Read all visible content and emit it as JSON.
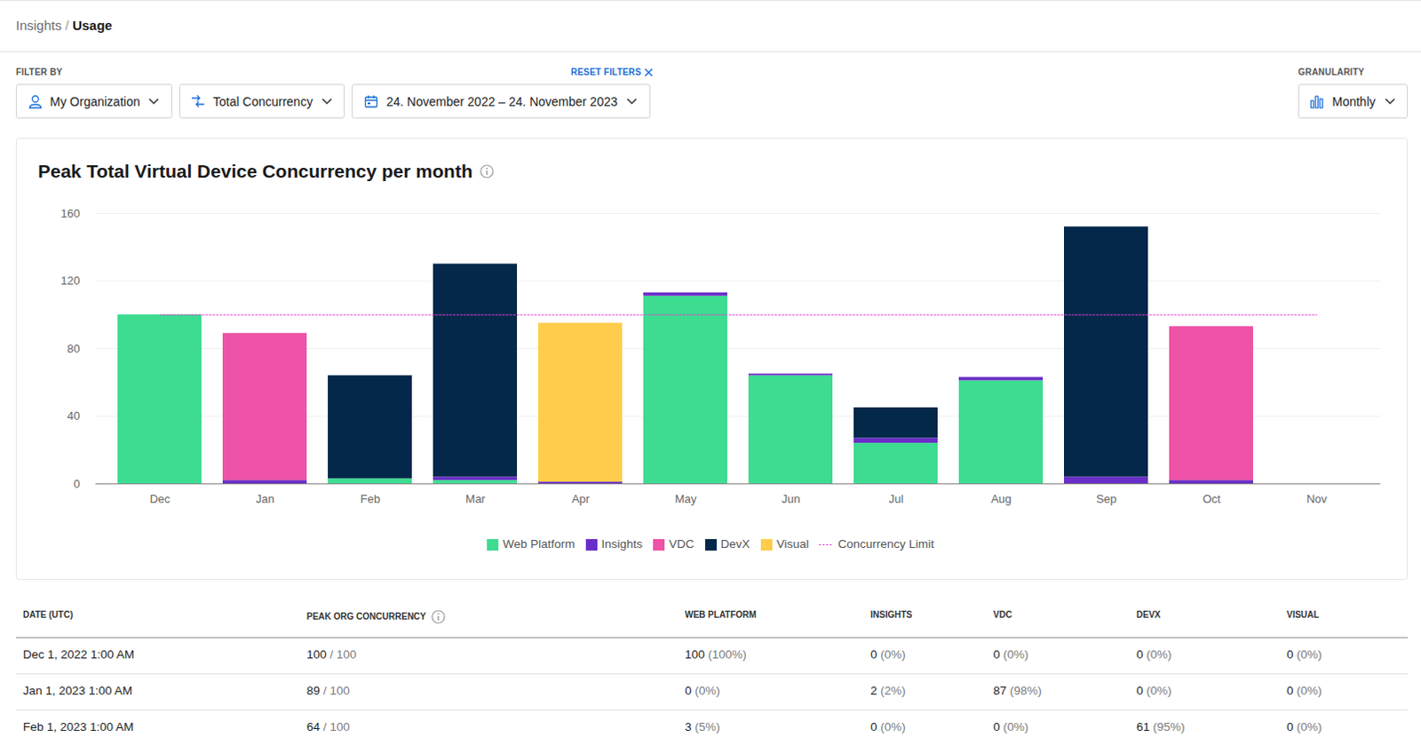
{
  "header": {
    "breadcrumb": [
      "Insights",
      "Usage"
    ],
    "separator": "/"
  },
  "filters": {
    "label": "FILTER BY",
    "reset": "RESET FILTERS",
    "items": [
      "My Organization",
      "Total Concurrency",
      "24. November 2022 – 24. November 2023"
    ]
  },
  "granularity": {
    "label": "GRANULARITY",
    "value": "Monthly"
  },
  "chart_data": {
    "type": "bar",
    "title": "Peak Total Virtual Device Concurrency per month",
    "stacked": true,
    "grid": true,
    "legend": "bottom",
    "categories": [
      "Dec",
      "Jan",
      "Feb",
      "Mar",
      "Apr",
      "May",
      "Jun",
      "Jul",
      "Aug",
      "Sep",
      "Oct",
      "Nov"
    ],
    "series": [
      {
        "name": "Web Platform",
        "color": "#3ddc91",
        "values": [
          100,
          0,
          3,
          2,
          0,
          111,
          64,
          24,
          61,
          0,
          0,
          0
        ]
      },
      {
        "name": "Insights",
        "color": "#6a2ec8",
        "values": [
          0,
          2,
          0,
          2,
          1,
          2,
          1,
          3,
          2,
          4,
          2,
          0
        ]
      },
      {
        "name": "VDC",
        "color": "#ee53a7",
        "values": [
          0,
          87,
          0,
          0,
          0,
          0,
          0,
          0,
          0,
          0,
          91,
          0
        ]
      },
      {
        "name": "DevX",
        "color": "#03284a",
        "values": [
          0,
          0,
          61,
          126,
          0,
          0,
          0,
          18,
          0,
          148,
          0,
          0
        ]
      },
      {
        "name": "Visual",
        "color": "#ffcd4b",
        "values": [
          0,
          0,
          0,
          0,
          94,
          0,
          0,
          0,
          0,
          0,
          0,
          0
        ]
      },
      {
        "name": "Concurrency Limit",
        "type": "line",
        "line_style": "dotted",
        "color": "#e43fd0",
        "values": [
          100,
          100,
          100,
          100,
          100,
          100,
          100,
          100,
          100,
          100,
          100,
          100
        ]
      }
    ],
    "ylim": [
      0,
      160
    ],
    "yticks": [
      0,
      40,
      80,
      120,
      160
    ]
  },
  "table": {
    "columns": [
      "DATE (UTC)",
      "PEAK ORG CONCURRENCY",
      "WEB PLATFORM",
      "INSIGHTS",
      "VDC",
      "DEVX",
      "VISUAL"
    ],
    "separator": "/",
    "rows": [
      [
        "Dec 1, 2022 1:00 AM",
        [
          "100",
          "100"
        ],
        [
          "100",
          "(100%)"
        ],
        [
          "0",
          "(0%)"
        ],
        [
          "0",
          "(0%)"
        ],
        [
          "0",
          "(0%)"
        ],
        [
          "0",
          "(0%)"
        ]
      ],
      [
        "Jan 1, 2023 1:00 AM",
        [
          "89",
          "100"
        ],
        [
          "0",
          "(0%)"
        ],
        [
          "2",
          "(2%)"
        ],
        [
          "87",
          "(98%)"
        ],
        [
          "0",
          "(0%)"
        ],
        [
          "0",
          "(0%)"
        ]
      ],
      [
        "Feb 1, 2023 1:00 AM",
        [
          "64",
          "100"
        ],
        [
          "3",
          "(5%)"
        ],
        [
          "0",
          "(0%)"
        ],
        [
          "0",
          "(0%)"
        ],
        [
          "61",
          "(95%)"
        ],
        [
          "0",
          "(0%)"
        ]
      ]
    ]
  }
}
